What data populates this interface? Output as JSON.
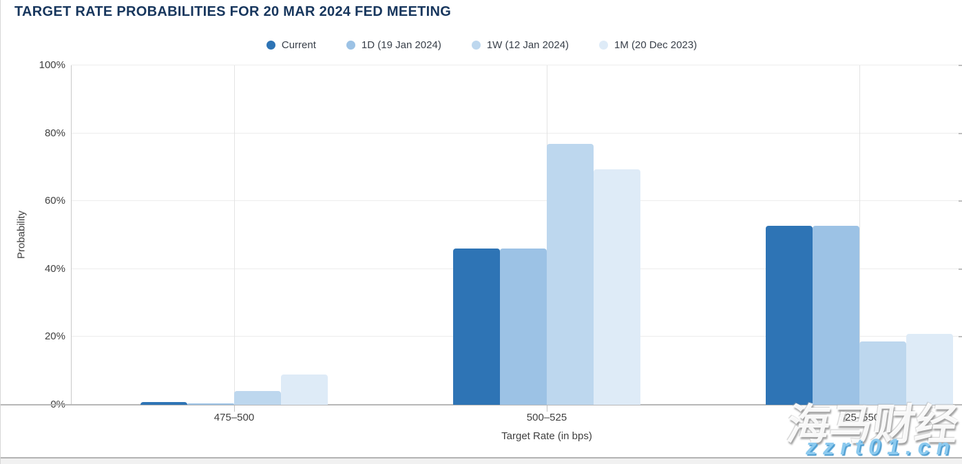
{
  "title": "TARGET RATE PROBABILITIES FOR 20 MAR 2024 FED MEETING",
  "chart_data": {
    "type": "bar",
    "title": "TARGET RATE PROBABILITIES FOR 20 MAR 2024 FED MEETING",
    "categories": [
      "475–500",
      "500–525",
      "525–550"
    ],
    "series": [
      {
        "name": "Current",
        "color": "#2E74B5",
        "values": [
          0.8,
          46.1,
          52.8
        ]
      },
      {
        "name": "1D (19 Jan 2024)",
        "color": "#9CC2E5",
        "values": [
          0.5,
          46.1,
          52.8
        ]
      },
      {
        "name": "1W (12 Jan 2024)",
        "color": "#BDD7EE",
        "values": [
          4.0,
          76.9,
          18.6
        ]
      },
      {
        "name": "1M (20 Dec 2023)",
        "color": "#DEEBF7",
        "values": [
          9.0,
          69.4,
          20.8
        ]
      }
    ],
    "xlabel": "Target Rate (in bps)",
    "ylabel": "Probability",
    "ylim": [
      0,
      100
    ],
    "yticks": [
      "0%",
      "20%",
      "40%",
      "60%",
      "80%",
      "100%"
    ],
    "grid": true,
    "legend_position": "top-center"
  },
  "watermark": {
    "cjk": "海马财经",
    "url": "zzrt01.cn"
  }
}
